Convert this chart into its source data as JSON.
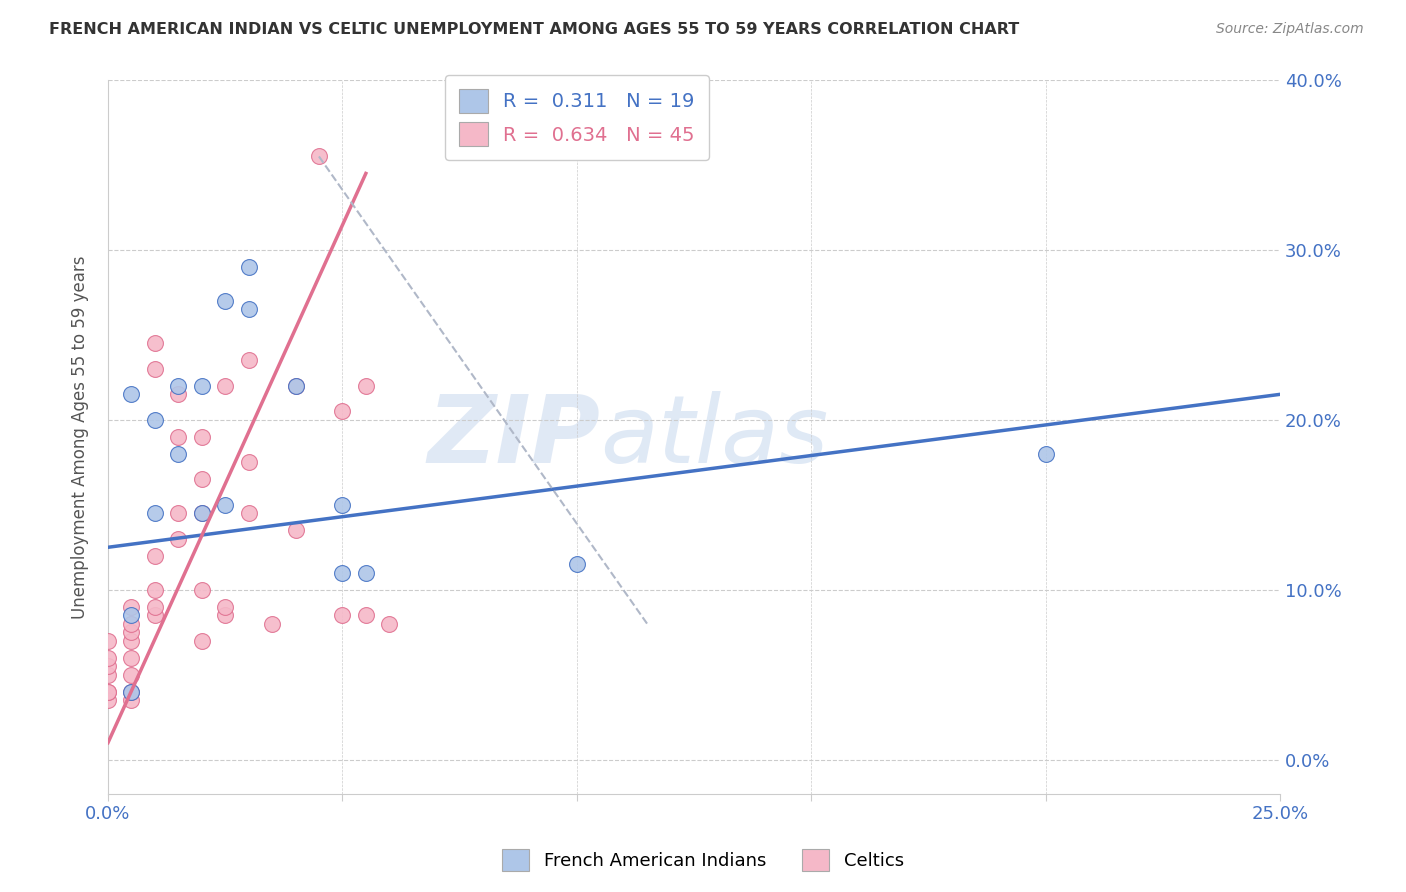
{
  "title": "FRENCH AMERICAN INDIAN VS CELTIC UNEMPLOYMENT AMONG AGES 55 TO 59 YEARS CORRELATION CHART",
  "source": "Source: ZipAtlas.com",
  "xlim": [
    0.0,
    0.25
  ],
  "ylim": [
    -0.02,
    0.4
  ],
  "xlabel_legend1": "French American Indians",
  "xlabel_legend2": "Celtics",
  "legend_r1": "R =  0.311",
  "legend_n1": "N = 19",
  "legend_r2": "R =  0.634",
  "legend_n2": "N = 45",
  "color_blue": "#aec6e8",
  "color_pink": "#f5b8c8",
  "color_blue_line": "#4472C4",
  "color_pink_line": "#e07090",
  "color_dashed_line": "#b0b8c8",
  "watermark_zip": "ZIP",
  "watermark_atlas": "atlas",
  "blue_scatter_x": [
    0.005,
    0.01,
    0.01,
    0.015,
    0.015,
    0.02,
    0.025,
    0.02,
    0.025,
    0.03,
    0.03,
    0.04,
    0.05,
    0.05,
    0.055,
    0.2,
    0.1,
    0.005,
    0.005
  ],
  "blue_scatter_y": [
    0.215,
    0.2,
    0.145,
    0.22,
    0.18,
    0.22,
    0.27,
    0.145,
    0.15,
    0.29,
    0.265,
    0.22,
    0.15,
    0.11,
    0.11,
    0.18,
    0.115,
    0.085,
    0.04
  ],
  "pink_scatter_x": [
    0.0,
    0.0,
    0.0,
    0.0,
    0.0,
    0.0,
    0.0,
    0.005,
    0.005,
    0.005,
    0.005,
    0.005,
    0.005,
    0.005,
    0.005,
    0.01,
    0.01,
    0.01,
    0.01,
    0.01,
    0.01,
    0.015,
    0.015,
    0.015,
    0.015,
    0.02,
    0.02,
    0.02,
    0.02,
    0.02,
    0.025,
    0.025,
    0.025,
    0.03,
    0.03,
    0.03,
    0.035,
    0.04,
    0.04,
    0.045,
    0.05,
    0.05,
    0.055,
    0.055,
    0.06
  ],
  "pink_scatter_y": [
    0.035,
    0.04,
    0.04,
    0.05,
    0.055,
    0.06,
    0.07,
    0.035,
    0.04,
    0.05,
    0.06,
    0.07,
    0.075,
    0.08,
    0.09,
    0.085,
    0.09,
    0.1,
    0.12,
    0.23,
    0.245,
    0.13,
    0.145,
    0.19,
    0.215,
    0.07,
    0.1,
    0.145,
    0.165,
    0.19,
    0.085,
    0.09,
    0.22,
    0.145,
    0.175,
    0.235,
    0.08,
    0.135,
    0.22,
    0.355,
    0.085,
    0.205,
    0.085,
    0.22,
    0.08
  ],
  "blue_line_x": [
    0.0,
    0.25
  ],
  "blue_line_y": [
    0.125,
    0.215
  ],
  "pink_line_x": [
    0.0,
    0.055
  ],
  "pink_line_y": [
    0.01,
    0.345
  ],
  "dashed_line_x": [
    0.045,
    0.115
  ],
  "dashed_line_y": [
    0.355,
    0.08
  ],
  "xtick_vals": [
    0.0,
    0.05,
    0.1,
    0.15,
    0.2,
    0.25
  ],
  "xtick_labels": [
    "0.0%",
    "",
    "",
    "",
    "",
    "25.0%"
  ],
  "ytick_vals": [
    0.0,
    0.1,
    0.2,
    0.3,
    0.4
  ],
  "ytick_labels": [
    "0.0%",
    "10.0%",
    "20.0%",
    "30.0%",
    "40.0%"
  ]
}
